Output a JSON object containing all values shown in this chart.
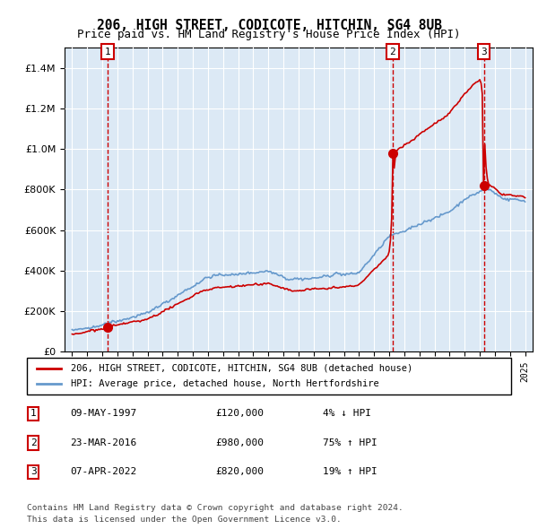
{
  "title1": "206, HIGH STREET, CODICOTE, HITCHIN, SG4 8UB",
  "title2": "Price paid vs. HM Land Registry's House Price Index (HPI)",
  "legend_line1": "206, HIGH STREET, CODICOTE, HITCHIN, SG4 8UB (detached house)",
  "legend_line2": "HPI: Average price, detached house, North Hertfordshire",
  "transactions": [
    {
      "label": "1",
      "date_num": 1997.36,
      "price": 120000,
      "note": "09-MAY-1997",
      "amount": "£120,000",
      "hpi": "4% ↓ HPI"
    },
    {
      "label": "2",
      "date_num": 2016.23,
      "price": 980000,
      "note": "23-MAR-2016",
      "amount": "£980,000",
      "hpi": "75% ↑ HPI"
    },
    {
      "label": "3",
      "date_num": 2022.27,
      "price": 820000,
      "note": "07-APR-2022",
      "amount": "£820,000",
      "hpi": "19% ↑ HPI"
    }
  ],
  "footnote1": "Contains HM Land Registry data © Crown copyright and database right 2024.",
  "footnote2": "This data is licensed under the Open Government Licence v3.0.",
  "hpi_color": "#6699cc",
  "price_color": "#cc0000",
  "bg_color": "#dce9f5",
  "ylim": [
    0,
    1500000
  ],
  "xlim_start": 1994.5,
  "xlim_end": 2025.5
}
